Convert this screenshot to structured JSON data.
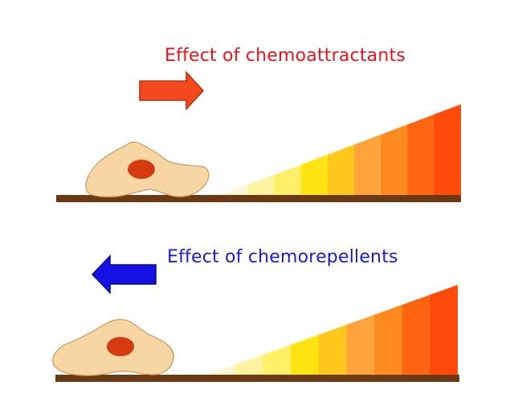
{
  "panels": [
    {
      "id": "attract",
      "title": "Effect of chemoattractants",
      "title_color": "#e8141c",
      "arrow_direction": "right",
      "arrow_color": "#f24a1e",
      "arrow_stroke_color": "#b8300c"
    },
    {
      "id": "repel",
      "title": "Effect of chemorepellents",
      "title_color": "#1a1ad8",
      "arrow_direction": "left",
      "arrow_color": "#1410e6",
      "arrow_stroke_color": "#0a0880"
    }
  ],
  "gradient_colors": [
    "#fff7cf",
    "#fff3a0",
    "#fff068",
    "#ffe312",
    "#ffc81a",
    "#ffa33c",
    "#ff8a20",
    "#ff6410",
    "#ff4a0a"
  ],
  "surface_color": "#6b3a14",
  "cell_color": "#f7d6a4",
  "cell_outline_color": "#c79a62",
  "nucleus_color": "#d63a10"
}
